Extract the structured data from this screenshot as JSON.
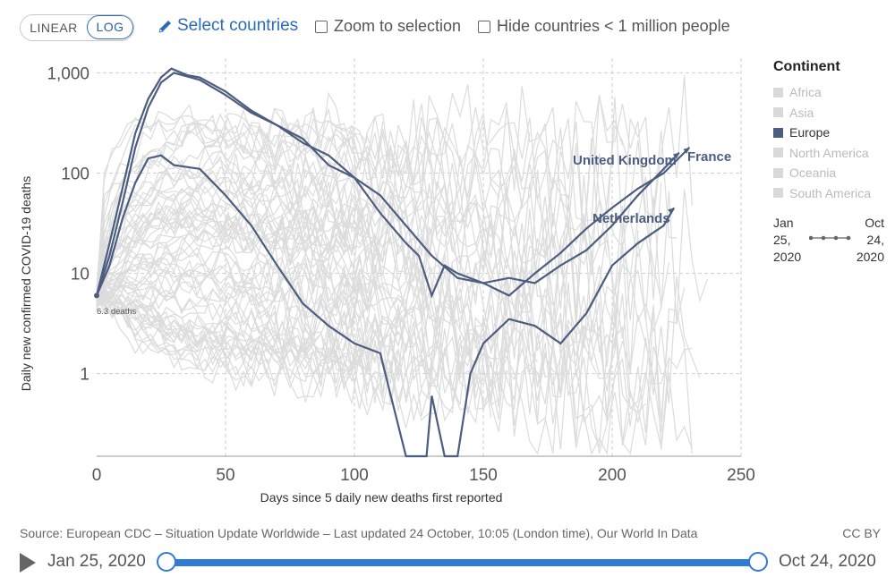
{
  "toolbar": {
    "linear_label": "LINEAR",
    "log_label": "LOG",
    "select_countries_label": "Select countries",
    "zoom_label": "Zoom to selection",
    "hide_label": "Hide countries < 1 million people"
  },
  "legend": {
    "title": "Continent",
    "items": [
      {
        "label": "Africa",
        "active": false
      },
      {
        "label": "Asia",
        "active": false
      },
      {
        "label": "Europe",
        "active": true
      },
      {
        "label": "North America",
        "active": false
      },
      {
        "label": "Oceania",
        "active": false
      },
      {
        "label": "South America",
        "active": false
      }
    ]
  },
  "mini_timeline": {
    "start_line1": "Jan",
    "start_line2": "25,",
    "start_line3": "2020",
    "end_line1": "Oct",
    "end_line2": "24,",
    "end_line3": "2020"
  },
  "footer": {
    "source": "Source: European CDC – Situation Update Worldwide – Last updated 24 October, 10:05 (London time), Our World In Data",
    "license": "CC BY",
    "start_date": "Jan 25, 2020",
    "end_date": "Oct 24, 2020"
  },
  "colors": {
    "highlight": "#4c5d80",
    "background_lines": "#dcdcdc",
    "accent": "#2f7bd6"
  },
  "chart_data": {
    "type": "line",
    "xlabel": "Days since 5 daily new deaths first reported",
    "ylabel": "Daily new confirmed COVID-19 deaths",
    "x_ticks": [
      0,
      50,
      100,
      150,
      200,
      250
    ],
    "y_ticks": [
      1,
      10,
      100,
      1000
    ],
    "y_tick_labels": [
      "1",
      "10",
      "100",
      "1,000"
    ],
    "xlim": [
      0,
      250
    ],
    "ylim": [
      0.15,
      1400
    ],
    "y_scale": "log",
    "grid": true,
    "start_annotation": "6.3 deaths",
    "series": [
      {
        "name": "United Kingdom",
        "points": [
          [
            0,
            6
          ],
          [
            5,
            20
          ],
          [
            10,
            70
          ],
          [
            15,
            250
          ],
          [
            20,
            550
          ],
          [
            25,
            900
          ],
          [
            29,
            1100
          ],
          [
            35,
            950
          ],
          [
            40,
            900
          ],
          [
            50,
            650
          ],
          [
            60,
            420
          ],
          [
            70,
            300
          ],
          [
            80,
            200
          ],
          [
            90,
            150
          ],
          [
            100,
            90
          ],
          [
            110,
            60
          ],
          [
            120,
            30
          ],
          [
            130,
            15
          ],
          [
            140,
            9
          ],
          [
            150,
            8
          ],
          [
            160,
            9
          ],
          [
            170,
            8
          ],
          [
            180,
            12
          ],
          [
            190,
            17
          ],
          [
            200,
            30
          ],
          [
            210,
            60
          ],
          [
            220,
            110
          ],
          [
            226,
            160
          ]
        ]
      },
      {
        "name": "France",
        "points": [
          [
            0,
            6
          ],
          [
            5,
            15
          ],
          [
            10,
            50
          ],
          [
            15,
            180
          ],
          [
            20,
            450
          ],
          [
            25,
            800
          ],
          [
            30,
            1000
          ],
          [
            40,
            850
          ],
          [
            50,
            600
          ],
          [
            60,
            400
          ],
          [
            70,
            300
          ],
          [
            80,
            220
          ],
          [
            90,
            120
          ],
          [
            100,
            90
          ],
          [
            110,
            40
          ],
          [
            120,
            20
          ],
          [
            125,
            15
          ],
          [
            130,
            6
          ],
          [
            135,
            12
          ],
          [
            140,
            10
          ],
          [
            150,
            8
          ],
          [
            160,
            6
          ],
          [
            170,
            10
          ],
          [
            180,
            16
          ],
          [
            190,
            28
          ],
          [
            200,
            45
          ],
          [
            210,
            70
          ],
          [
            220,
            100
          ],
          [
            230,
            180
          ]
        ]
      },
      {
        "name": "Netherlands",
        "points": [
          [
            0,
            6
          ],
          [
            5,
            12
          ],
          [
            10,
            35
          ],
          [
            15,
            80
          ],
          [
            20,
            140
          ],
          [
            25,
            150
          ],
          [
            30,
            120
          ],
          [
            40,
            110
          ],
          [
            50,
            60
          ],
          [
            60,
            30
          ],
          [
            70,
            12
          ],
          [
            80,
            5
          ],
          [
            90,
            3
          ],
          [
            100,
            2
          ],
          [
            110,
            1.6
          ],
          [
            120,
            0.15
          ],
          [
            128,
            0.15
          ],
          [
            130,
            0.6
          ],
          [
            135,
            0.15
          ],
          [
            140,
            0.15
          ],
          [
            145,
            1
          ],
          [
            150,
            2
          ],
          [
            160,
            3.5
          ],
          [
            170,
            3
          ],
          [
            180,
            2
          ],
          [
            190,
            4
          ],
          [
            200,
            12
          ],
          [
            210,
            20
          ],
          [
            220,
            30
          ],
          [
            224,
            45
          ]
        ]
      }
    ]
  }
}
